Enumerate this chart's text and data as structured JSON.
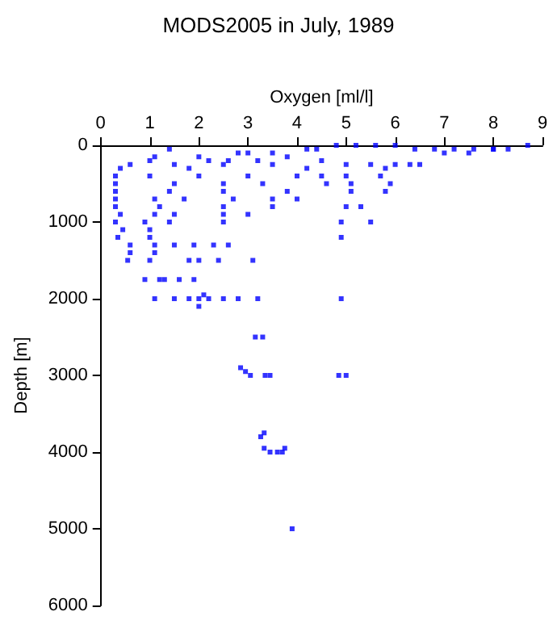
{
  "chart_data": {
    "type": "scatter",
    "title": "MODS2005 in July, 1989",
    "xlabel": "Oxygen [ml/l]",
    "ylabel": "Depth [m]",
    "xlim": [
      0,
      9
    ],
    "xticks": [
      0,
      1,
      2,
      3,
      4,
      5,
      6,
      7,
      8,
      9
    ],
    "ylim": [
      6000,
      0
    ],
    "yticks": [
      0,
      1000,
      2000,
      3000,
      4000,
      5000,
      6000
    ],
    "grid": false,
    "marker": "square",
    "series": [
      {
        "color": "#0000ff",
        "x": [
          8.7,
          8.3,
          8,
          7.6,
          7.2,
          6.8,
          6.4,
          6,
          5.6,
          5.2,
          4.8,
          4.4,
          4.2,
          3.5,
          3,
          2.8,
          2,
          1.4,
          1.1,
          0.4,
          0.6,
          1,
          1.5,
          2.2,
          2.6,
          3.2,
          3.8,
          4.5,
          5,
          5.5,
          6,
          6.5,
          6.3,
          5.8,
          7,
          7.5,
          8,
          4.2,
          3.5,
          2.5,
          1.8,
          0.3,
          1,
          2,
          3,
          4,
          4.5,
          5,
          5.7,
          0.3,
          1.5,
          2.5,
          3.3,
          4.6,
          5.1,
          5.9,
          0.3,
          1.4,
          2.5,
          3.8,
          5.1,
          5.8,
          0.3,
          1.1,
          1.7,
          2.7,
          3.5,
          4,
          0.3,
          1.2,
          2.5,
          3.5,
          5,
          5.3,
          0.4,
          1.1,
          1.5,
          2.5,
          3,
          0.3,
          0.9,
          1.4,
          2.5,
          4.9,
          5.5,
          0.45,
          1,
          0.35,
          1,
          4.9,
          0.6,
          1.1,
          1.5,
          1.9,
          2.3,
          2.6,
          0.6,
          1.1,
          0.55,
          1,
          1.8,
          2,
          2.4,
          3.1,
          0.9,
          1.2,
          1.3,
          1.6,
          1.9,
          1.1,
          1.5,
          1.8,
          2,
          2.1,
          2.2,
          2.5,
          2.8,
          3.2,
          4.9,
          2,
          3.15,
          3.3,
          2.85,
          2.95,
          3.05,
          3.35,
          3.45,
          4.85,
          5,
          3.33,
          3.26,
          3.33,
          3.45,
          3.6,
          3.7,
          3.75,
          3.9
        ],
        "values": [
          0,
          50,
          50,
          50,
          50,
          50,
          50,
          0,
          0,
          0,
          0,
          50,
          50,
          100,
          100,
          100,
          150,
          50,
          150,
          300,
          250,
          200,
          250,
          200,
          200,
          200,
          150,
          200,
          250,
          250,
          250,
          250,
          250,
          300,
          100,
          100,
          50,
          300,
          250,
          250,
          300,
          400,
          400,
          400,
          400,
          400,
          400,
          400,
          400,
          500,
          500,
          500,
          500,
          500,
          500,
          500,
          600,
          600,
          600,
          600,
          600,
          600,
          700,
          700,
          700,
          700,
          700,
          700,
          800,
          800,
          800,
          800,
          800,
          800,
          900,
          900,
          900,
          900,
          900,
          1000,
          1000,
          1000,
          1000,
          1000,
          1000,
          1100,
          1100,
          1200,
          1200,
          1200,
          1300,
          1300,
          1300,
          1300,
          1300,
          1300,
          1400,
          1400,
          1500,
          1500,
          1500,
          1500,
          1500,
          1500,
          1750,
          1750,
          1750,
          1750,
          1750,
          2000,
          2000,
          2000,
          2000,
          1950,
          2000,
          2000,
          2000,
          2000,
          2000,
          2100,
          2500,
          2500,
          2900,
          2950,
          3000,
          3000,
          3000,
          3000,
          3000,
          3750,
          3800,
          3950,
          4000,
          4000,
          4000,
          3950,
          5000
        ]
      }
    ]
  }
}
